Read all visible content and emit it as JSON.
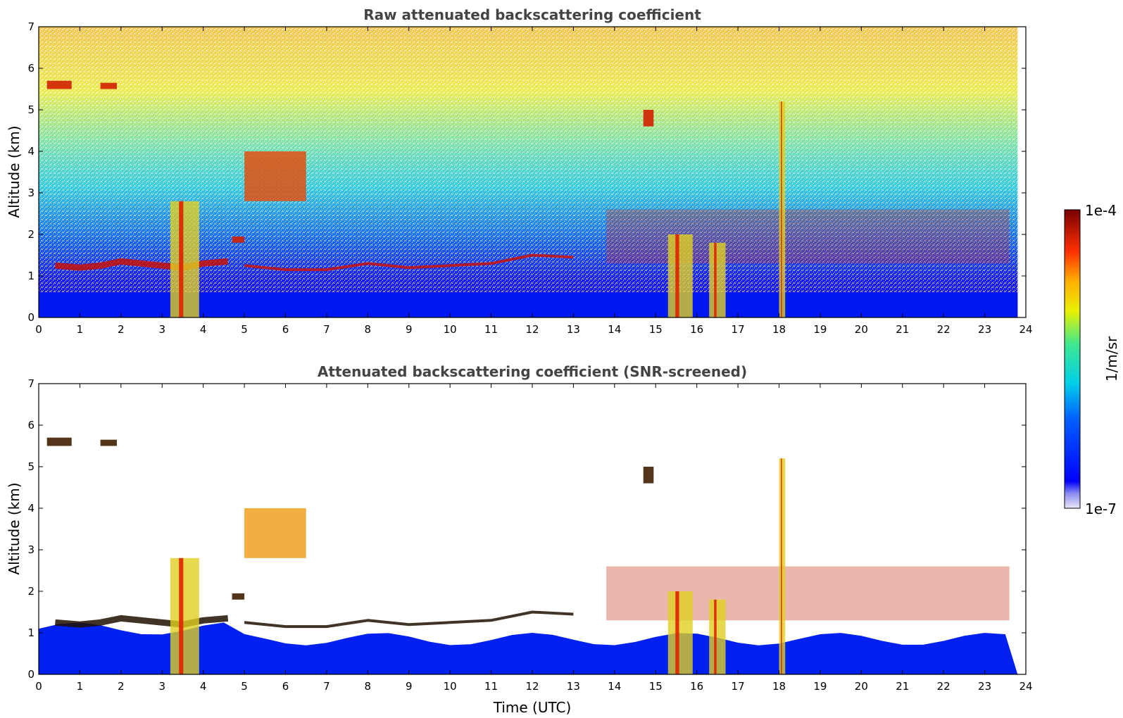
{
  "chart_data": [
    {
      "type": "heatmap",
      "title": "Raw attenuated backscattering coefficient",
      "xlabel": "",
      "ylabel": "Altitude (km)",
      "xlim": [
        0,
        24
      ],
      "ylim": [
        0,
        7
      ],
      "xticks": [
        0,
        1,
        2,
        3,
        4,
        5,
        6,
        7,
        8,
        9,
        10,
        11,
        12,
        13,
        14,
        15,
        16,
        17,
        18,
        19,
        20,
        21,
        22,
        23,
        24
      ],
      "yticks": [
        0,
        1,
        2,
        3,
        4,
        5,
        6,
        7
      ],
      "data_end_time": 23.8,
      "screened": false,
      "features": [
        {
          "kind": "boundary_layer_top",
          "points": [
            [
              0.4,
              1.25
            ],
            [
              1,
              1.2
            ],
            [
              1.5,
              1.25
            ],
            [
              2,
              1.35
            ],
            [
              2.5,
              1.3
            ],
            [
              3,
              1.25
            ],
            [
              3.5,
              1.2
            ],
            [
              4,
              1.3
            ],
            [
              4.6,
              1.35
            ]
          ]
        },
        {
          "kind": "residual_layer",
          "points": [
            [
              5,
              1.25
            ],
            [
              6,
              1.15
            ],
            [
              7,
              1.15
            ],
            [
              8,
              1.3
            ],
            [
              9,
              1.2
            ],
            [
              10,
              1.25
            ],
            [
              11,
              1.3
            ],
            [
              12,
              1.5
            ],
            [
              13,
              1.45
            ]
          ]
        },
        {
          "kind": "cloud",
          "time": [
            0.2,
            0.8
          ],
          "alt": [
            5.5,
            5.7
          ]
        },
        {
          "kind": "cloud",
          "time": [
            1.5,
            1.9
          ],
          "alt": [
            5.5,
            5.65
          ]
        },
        {
          "kind": "cloud",
          "time": [
            4.7,
            5.0
          ],
          "alt": [
            1.8,
            1.95
          ]
        },
        {
          "kind": "aerosol_layer",
          "time": [
            5.0,
            6.5
          ],
          "alt": [
            2.8,
            4.0
          ]
        },
        {
          "kind": "cloud",
          "time": [
            14.7,
            14.95
          ],
          "alt": [
            4.6,
            5.0
          ]
        },
        {
          "kind": "cumulus_field",
          "time": [
            13.8,
            23.6
          ],
          "alt": [
            1.3,
            2.6
          ]
        },
        {
          "kind": "precipitation",
          "time": [
            3.2,
            3.9
          ],
          "alt": [
            0,
            2.8
          ]
        },
        {
          "kind": "precipitation",
          "time": [
            15.3,
            15.9
          ],
          "alt": [
            0,
            2.0
          ]
        },
        {
          "kind": "precipitation",
          "time": [
            16.3,
            16.7
          ],
          "alt": [
            0,
            1.8
          ]
        },
        {
          "kind": "precipitation",
          "time": [
            18.0,
            18.15
          ],
          "alt": [
            0,
            5.2
          ]
        }
      ]
    },
    {
      "type": "heatmap",
      "title": "Attenuated backscattering coefficient (SNR-screened)",
      "xlabel": "Time (UTC)",
      "ylabel": "Altitude (km)",
      "xlim": [
        0,
        24
      ],
      "ylim": [
        0,
        7
      ],
      "xticks": [
        0,
        1,
        2,
        3,
        4,
        5,
        6,
        7,
        8,
        9,
        10,
        11,
        12,
        13,
        14,
        15,
        16,
        17,
        18,
        19,
        20,
        21,
        22,
        23,
        24
      ],
      "yticks": [
        0,
        1,
        2,
        3,
        4,
        5,
        6,
        7
      ],
      "data_end_time": 23.8,
      "screened": true
    }
  ],
  "colorbar": {
    "label": "1/m/sr",
    "min_label": "1e-7",
    "max_label": "1e-4",
    "scale": "log",
    "colormap": "jet"
  }
}
